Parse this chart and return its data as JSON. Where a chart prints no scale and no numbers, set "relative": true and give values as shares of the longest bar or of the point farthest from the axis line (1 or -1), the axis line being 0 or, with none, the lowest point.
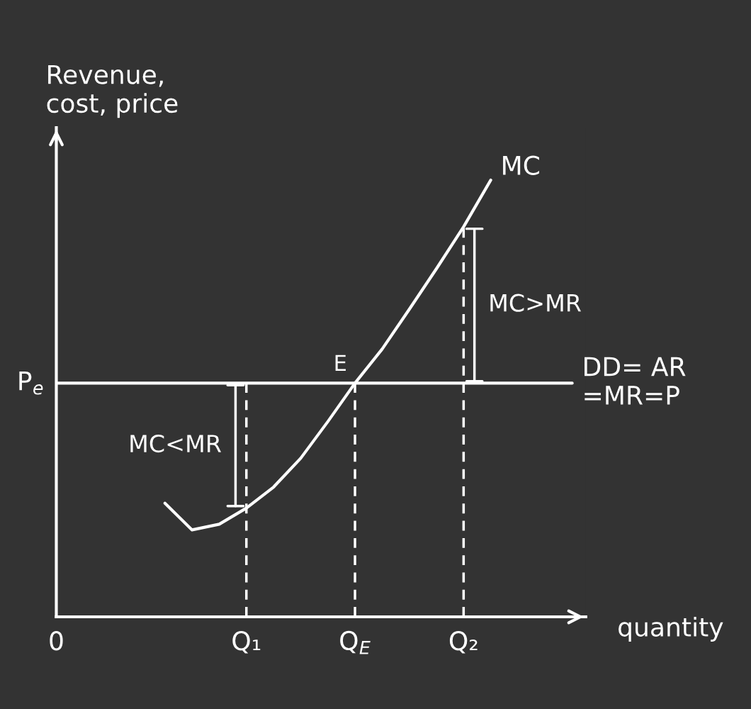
{
  "chart_data": {
    "type": "line",
    "relative": true,
    "xlabel": "quantity",
    "ylabel": "Revenue,\ncost, price",
    "categories": [
      "0",
      null,
      null,
      null,
      null,
      null,
      null,
      "Q₁",
      null,
      null,
      null,
      "Q$_{E}$",
      null,
      null,
      null,
      "Q₂",
      null,
      null,
      null,
      null
    ],
    "series": [
      {
        "name": "MC",
        "color": "#ffffff",
        "values": [
          null,
          null,
          null,
          null,
          0.26,
          0.199,
          0.212,
          0.249,
          0.297,
          0.363,
          0.447,
          0.535,
          0.613,
          0.704,
          0.797,
          0.893,
          1,
          null,
          null,
          null
        ]
      },
      {
        "name": "DD= AR\n=MR=P",
        "color": "#ffffff",
        "values": [
          0.535,
          0.535,
          0.535,
          0.535,
          0.535,
          0.535,
          0.535,
          0.535,
          0.535,
          0.535,
          0.535,
          0.535,
          0.535,
          0.535,
          0.535,
          0.535,
          0.535,
          0.535,
          0.535,
          0.535
        ]
      }
    ],
    "annotations": [
      {
        "text": "P$_{e}$",
        "x": "0",
        "y": 0.535
      },
      {
        "text": "E",
        "x": "Q$_{E}$",
        "y": 0.535
      },
      "MC<MR",
      "MC>MR"
    ],
    "legend": false,
    "grid": false
  }
}
